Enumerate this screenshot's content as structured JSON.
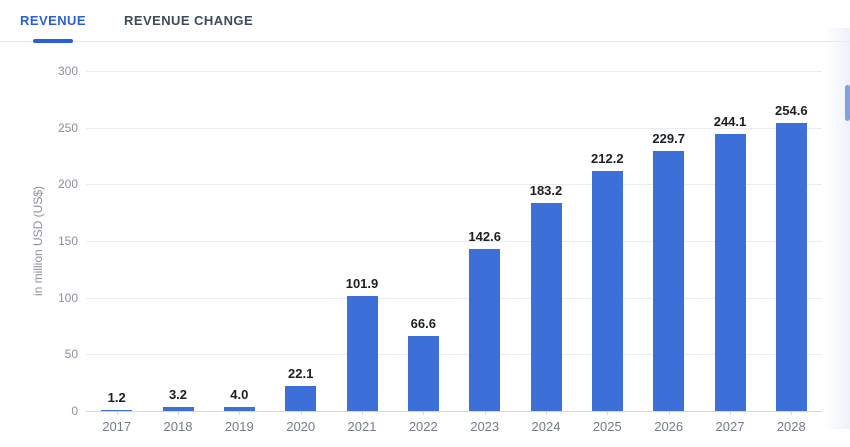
{
  "tabs": [
    {
      "label": "REVENUE",
      "active": true
    },
    {
      "label": "REVENUE CHANGE",
      "active": false
    }
  ],
  "chart_data": {
    "type": "bar",
    "title": "",
    "categories": [
      "2017",
      "2018",
      "2019",
      "2020",
      "2021",
      "2022",
      "2023",
      "2024",
      "2025",
      "2026",
      "2027",
      "2028"
    ],
    "values": [
      1.2,
      3.2,
      4.0,
      22.1,
      101.9,
      66.6,
      142.6,
      183.2,
      212.2,
      229.7,
      244.1,
      254.6
    ],
    "value_labels": [
      "1.2",
      "3.2",
      "4.0",
      "22.1",
      "101.9",
      "66.6",
      "142.6",
      "183.2",
      "212.2",
      "229.7",
      "244.1",
      "254.6"
    ],
    "xlabel": "",
    "ylabel": "in million USD (US$)",
    "yticks": [
      0,
      50,
      100,
      150,
      200,
      250,
      300
    ],
    "ylim": [
      0,
      300
    ],
    "grid": true,
    "legend": "none",
    "bar_color": "#3c70d8"
  },
  "colors": {
    "accent": "#2b5fd9",
    "bar": "#3c70d8",
    "grid": "#eaecef",
    "axis": "#ccd7ec",
    "tick_text": "#8b919b",
    "year_text": "#747c89",
    "value_text": "#1c1f24",
    "tab_inactive": "#3e4a5b"
  },
  "scrollbar": {
    "present": true
  }
}
